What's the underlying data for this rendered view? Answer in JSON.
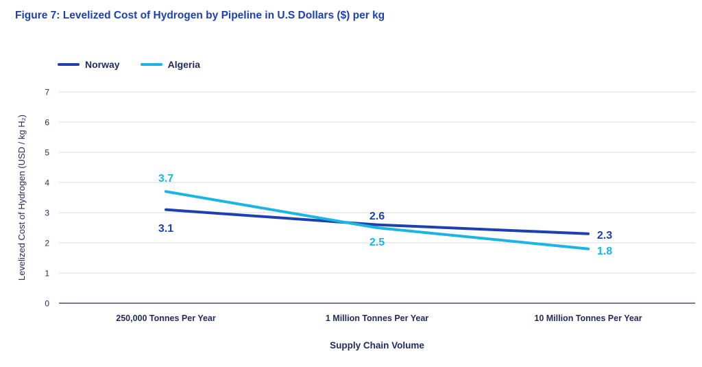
{
  "figure_title": "Figure 7: Levelized Cost of Hydrogen by Pipeline in U.S Dollars ($) per kg",
  "colors": {
    "title": "#1e40af",
    "norway": "#1e40af",
    "algeria": "#1ab5e2",
    "grid": "#d9d9d9",
    "axis_text": "#1f2a5a"
  },
  "chart_data": {
    "type": "line",
    "title": "Figure 7: Levelized Cost of Hydrogen by Pipeline in U.S Dollars ($) per kg",
    "categories": [
      "250,000 Tonnes Per Year",
      "1 Million Tonnes Per Year",
      "10 Million Tonnes Per Year"
    ],
    "series": [
      {
        "name": "Norway",
        "values": [
          3.1,
          2.6,
          2.3
        ],
        "labels": [
          "3.1",
          "2.6",
          "2.3"
        ]
      },
      {
        "name": "Algeria",
        "values": [
          3.7,
          2.5,
          1.8
        ],
        "labels": [
          "3.7",
          "2.5",
          "1.8"
        ]
      }
    ],
    "xlabel": "Supply Chain Volume",
    "ylabel": "Levelized Cost of Hydrogen (USD / kg H₂)",
    "ylim": [
      0,
      7
    ],
    "yticks": [
      "0",
      "1",
      "2",
      "3",
      "4",
      "5",
      "6",
      "7"
    ],
    "grid": true,
    "legend": "top-left"
  }
}
